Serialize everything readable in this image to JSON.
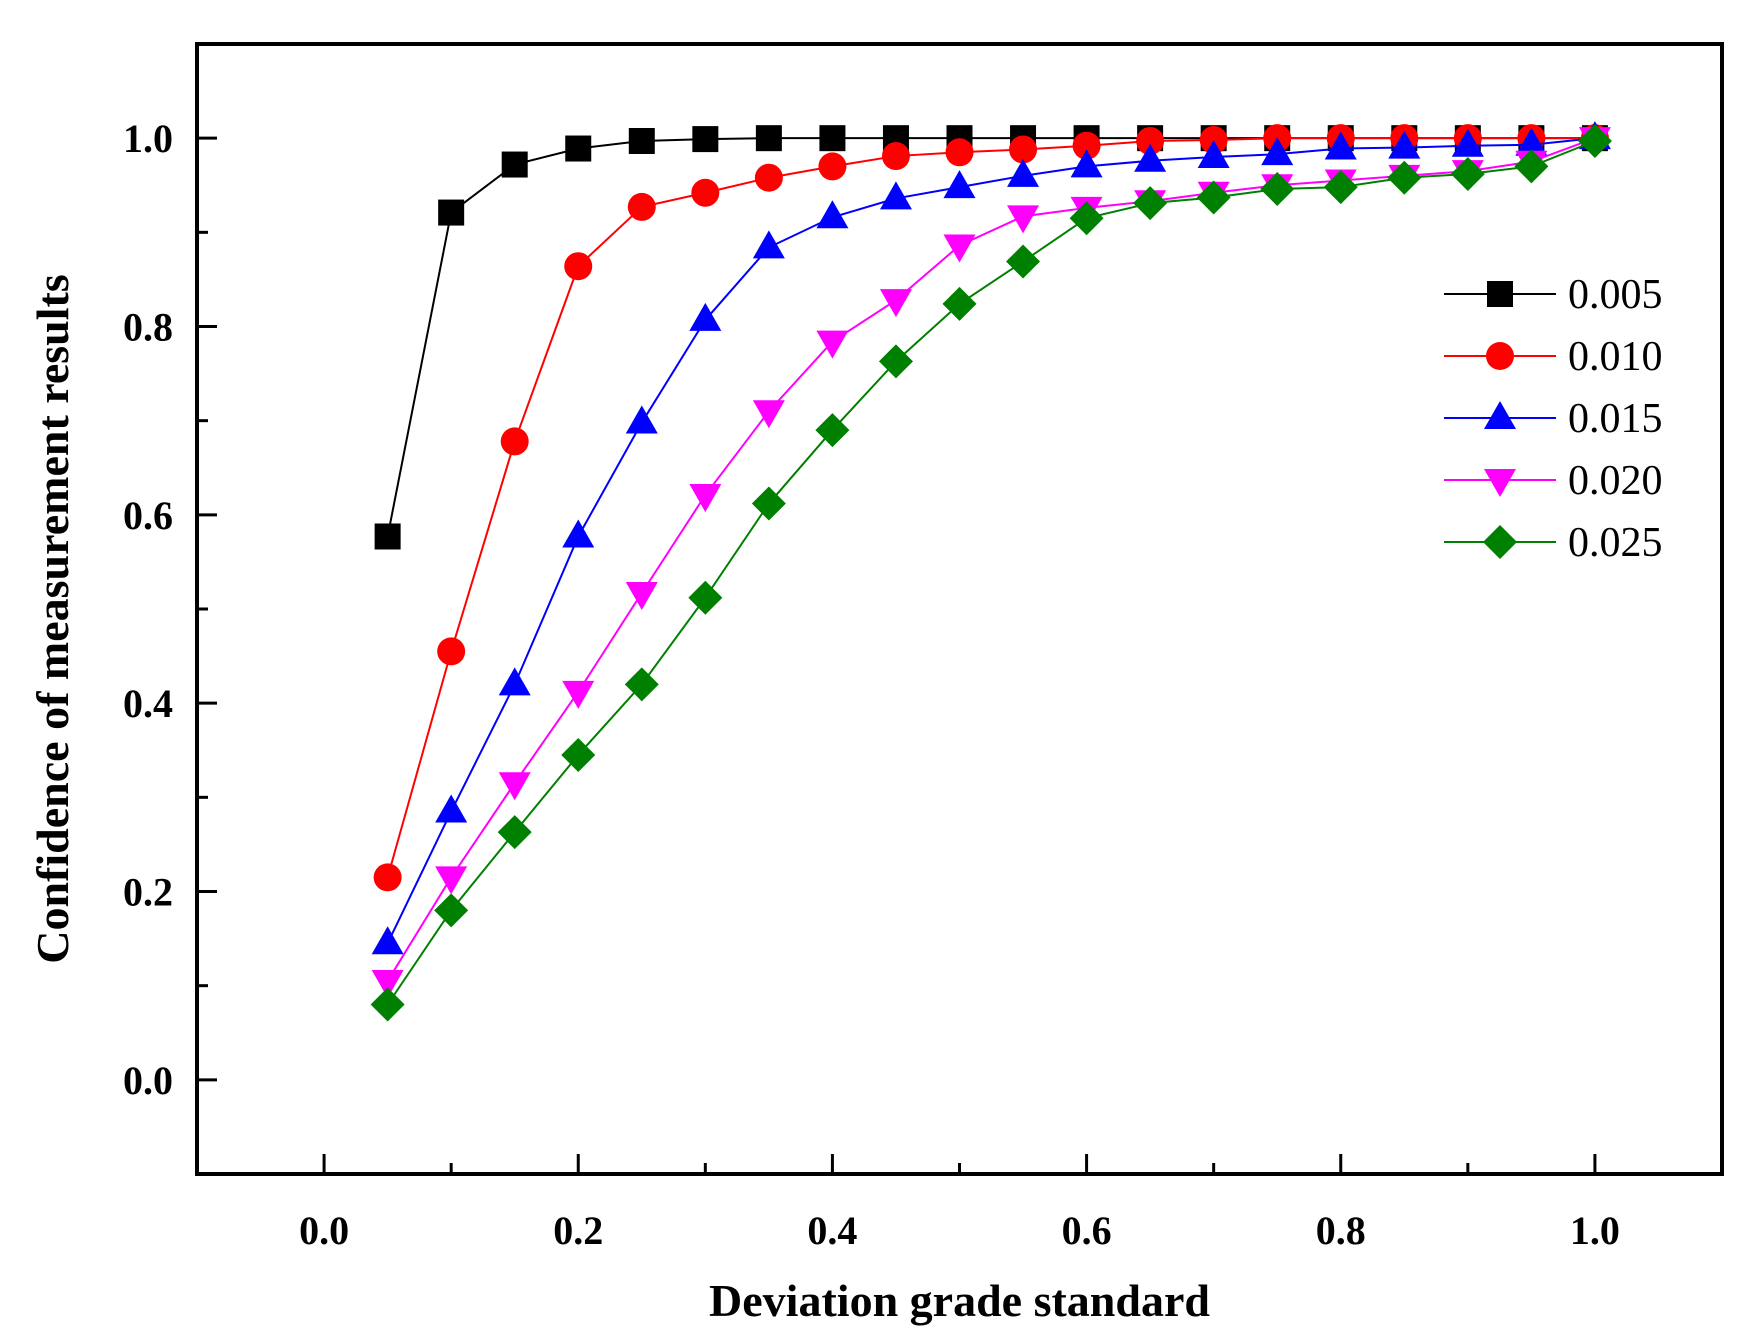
{
  "chart_data": {
    "type": "line",
    "title": "",
    "xlabel": "Deviation grade standard",
    "ylabel": "Confidence of measurement results",
    "xlim": [
      -0.1,
      1.1
    ],
    "ylim": [
      -0.1,
      1.1
    ],
    "x_ticks": [
      "0.0",
      "0.2",
      "0.4",
      "0.6",
      "0.8",
      "1.0"
    ],
    "y_ticks": [
      "0.0",
      "0.2",
      "0.4",
      "0.6",
      "0.8",
      "1.0"
    ],
    "x_tick_values": [
      0.0,
      0.2,
      0.4,
      0.6,
      0.8,
      1.0
    ],
    "y_tick_values": [
      0.0,
      0.2,
      0.4,
      0.6,
      0.8,
      1.0
    ],
    "grid": false,
    "legend_position": "right",
    "x": [
      0.05,
      0.1,
      0.15,
      0.2,
      0.25,
      0.3,
      0.35,
      0.4,
      0.45,
      0.5,
      0.55,
      0.6,
      0.65,
      0.7,
      0.75,
      0.8,
      0.85,
      0.9,
      0.95,
      1.0
    ],
    "series": [
      {
        "name": "0.005",
        "color": "#000000",
        "marker": "square",
        "values": [
          0.577,
          0.921,
          0.972,
          0.989,
          0.997,
          0.999,
          1.0,
          1.0,
          1.0,
          1.0,
          1.0,
          1.0,
          1.0,
          1.0,
          1.0,
          1.0,
          1.0,
          1.0,
          1.0,
          1.0
        ]
      },
      {
        "name": "0.010",
        "color": "#ff0000",
        "marker": "circle",
        "values": [
          0.215,
          0.455,
          0.678,
          0.864,
          0.927,
          0.942,
          0.958,
          0.97,
          0.981,
          0.985,
          0.988,
          0.992,
          0.997,
          0.998,
          1.0,
          1.0,
          1.0,
          1.0,
          1.0,
          1.0
        ]
      },
      {
        "name": "0.015",
        "color": "#0000ff",
        "marker": "triangle-up",
        "values": [
          0.145,
          0.285,
          0.42,
          0.577,
          0.698,
          0.807,
          0.884,
          0.916,
          0.936,
          0.948,
          0.96,
          0.97,
          0.976,
          0.98,
          0.983,
          0.989,
          0.99,
          0.992,
          0.993,
          1.0
        ]
      },
      {
        "name": "0.020",
        "color": "#ff00ff",
        "marker": "triangle-down",
        "values": [
          0.105,
          0.215,
          0.315,
          0.412,
          0.517,
          0.621,
          0.71,
          0.784,
          0.828,
          0.886,
          0.917,
          0.926,
          0.933,
          0.942,
          0.95,
          0.955,
          0.96,
          0.965,
          0.975,
          1.0
        ]
      },
      {
        "name": "0.025",
        "color": "#008000",
        "marker": "diamond",
        "values": [
          0.08,
          0.18,
          0.263,
          0.345,
          0.42,
          0.512,
          0.612,
          0.69,
          0.763,
          0.824,
          0.869,
          0.915,
          0.931,
          0.937,
          0.946,
          0.948,
          0.958,
          0.962,
          0.97,
          0.997
        ]
      }
    ]
  }
}
